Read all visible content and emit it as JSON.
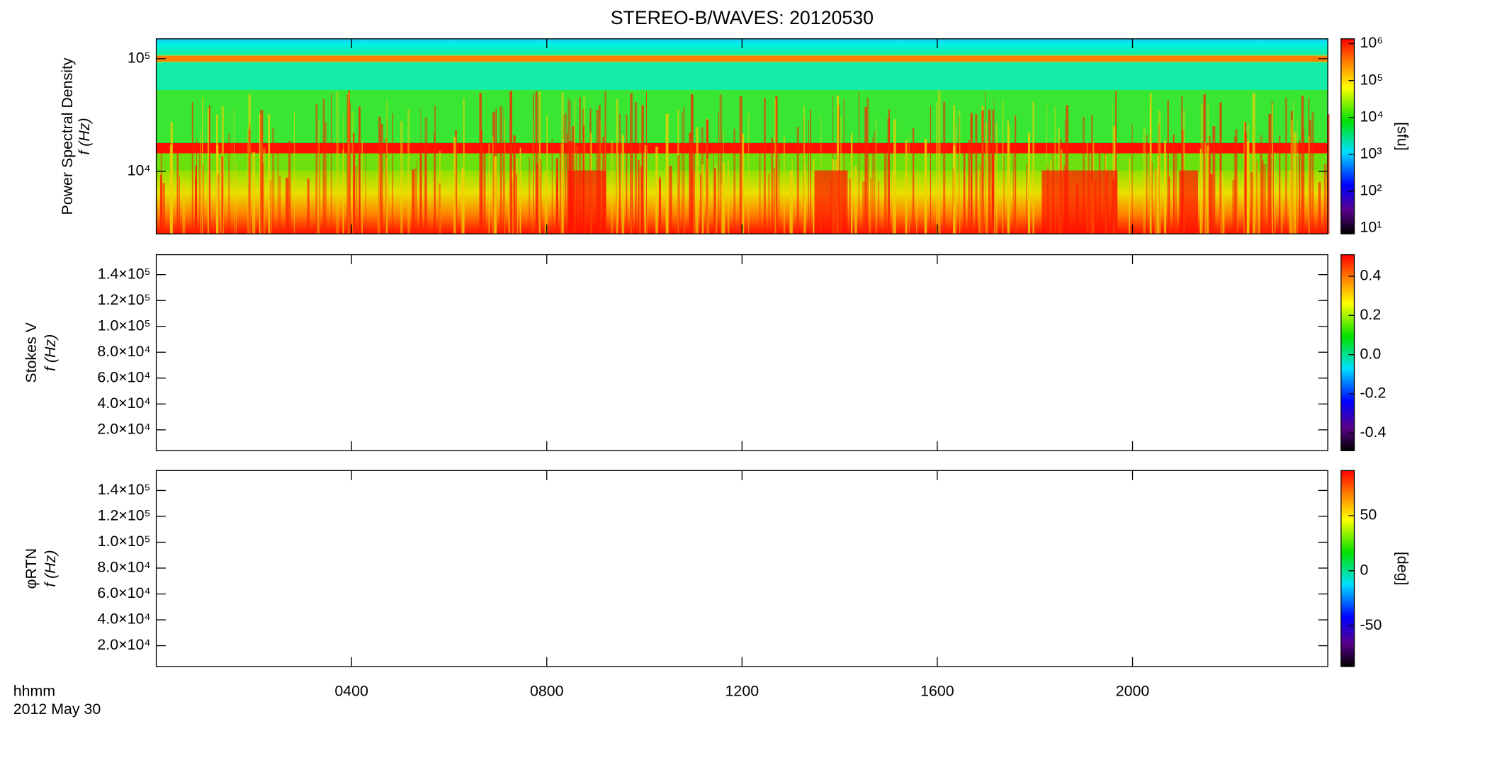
{
  "chart_data": [
    {
      "type": "heatmap",
      "title": "STEREO-B/WAVES: 20120530",
      "ylabel": [
        "Power Spectral Density",
        "f (Hz)"
      ],
      "log_y": true,
      "ylim": [
        2790,
        150000
      ],
      "yticks": [
        {
          "value": 10000,
          "label": "10⁴"
        },
        {
          "value": 100000,
          "label": "10⁵"
        }
      ],
      "colorbar": {
        "log": true,
        "label": "[sfu]",
        "zlim": [
          7,
          1350000
        ],
        "zticks": [
          {
            "value": 10,
            "label": "10¹"
          },
          {
            "value": 100,
            "label": "10²"
          },
          {
            "value": 1000,
            "label": "10³"
          },
          {
            "value": 10000,
            "label": "10⁴"
          },
          {
            "value": 100000,
            "label": "10⁵"
          },
          {
            "value": 1000000,
            "label": "10⁶"
          }
        ]
      }
    },
    {
      "type": "heatmap",
      "ylabel": [
        "Stokes V",
        "f (Hz)"
      ],
      "log_y": false,
      "ylim": [
        3900,
        155400
      ],
      "yticks": [
        {
          "value": 20000,
          "label": "2.0×10⁴"
        },
        {
          "value": 40000,
          "label": "4.0×10⁴"
        },
        {
          "value": 60000,
          "label": "6.0×10⁴"
        },
        {
          "value": 80000,
          "label": "8.0×10⁴"
        },
        {
          "value": 100000,
          "label": "1.0×10⁵"
        },
        {
          "value": 120000,
          "label": "1.2×10⁵"
        },
        {
          "value": 140000,
          "label": "1.4×10⁵"
        }
      ],
      "colorbar": {
        "log": false,
        "zlim": [
          -0.49,
          0.51
        ],
        "zticks": [
          -0.4,
          -0.2,
          {
            "value": 0,
            "label": "0.0"
          },
          0.2,
          0.4
        ]
      }
    },
    {
      "type": "heatmap",
      "ylabel": [
        "φRTN",
        "f (Hz)"
      ],
      "log_y": false,
      "ylim": [
        3900,
        155400
      ],
      "yticks": [
        {
          "value": 20000,
          "label": "2.0×10⁴"
        },
        {
          "value": 40000,
          "label": "4.0×10⁴"
        },
        {
          "value": 60000,
          "label": "6.0×10⁴"
        },
        {
          "value": 80000,
          "label": "8.0×10⁴"
        },
        {
          "value": 100000,
          "label": "1.0×10⁵"
        },
        {
          "value": 120000,
          "label": "1.2×10⁵"
        },
        {
          "value": 140000,
          "label": "1.4×10⁵"
        }
      ],
      "colorbar": {
        "log": false,
        "label": "[deg]",
        "zlim": [
          -87,
          91
        ],
        "zticks": [
          -50,
          0,
          50
        ]
      },
      "xlabel": [
        "hhmm",
        "2012 May 30"
      ],
      "xlim": [
        0,
        24
      ],
      "xticks": [
        {
          "value": 4,
          "label": "0400"
        },
        {
          "value": 8,
          "label": "0800"
        },
        {
          "value": 12,
          "label": "1200"
        },
        {
          "value": 16,
          "label": "1600"
        },
        {
          "value": 20,
          "label": "2000"
        }
      ]
    }
  ]
}
